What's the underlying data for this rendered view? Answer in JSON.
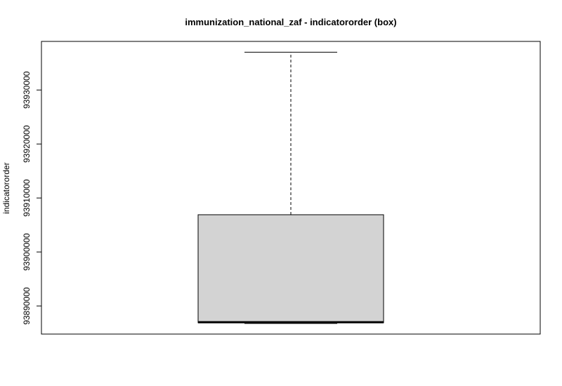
{
  "chart_data": {
    "type": "box",
    "title": "immunization_national_zaf - indicatororder (box)",
    "xlabel": "",
    "ylabel": "indicatororder",
    "ylim": [
      93884800,
      93939000
    ],
    "y_ticks": [
      93890000,
      93900000,
      93910000,
      93920000,
      93930000
    ],
    "y_tick_labels": [
      "93890000",
      "93900000",
      "93910000",
      "93920000",
      "93930000"
    ],
    "series": [
      {
        "min": 93886900,
        "q1": 93886900,
        "median": 93887000,
        "q3": 93906900,
        "max": 93937000
      }
    ],
    "colors": {
      "box_fill": "#d3d3d3",
      "stroke": "#000000"
    },
    "grid": false
  }
}
